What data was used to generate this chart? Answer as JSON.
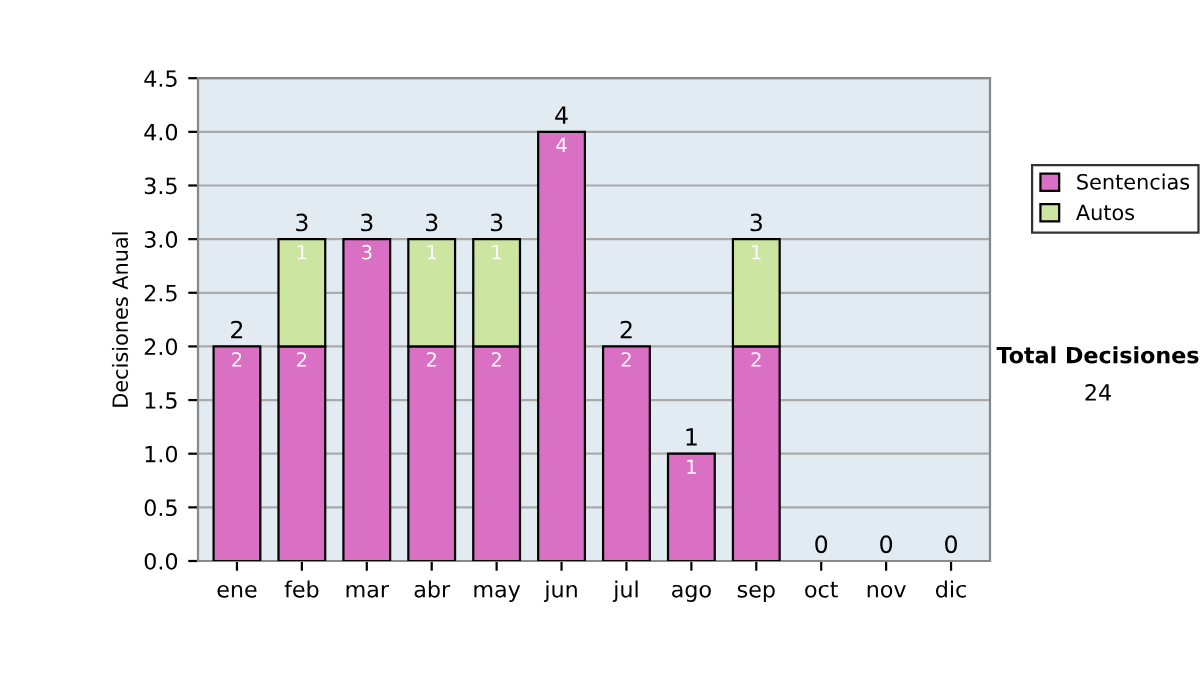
{
  "chart_data": {
    "type": "bar",
    "stacked": true,
    "ylabel": "Decisiones Anual",
    "categories": [
      "ene",
      "feb",
      "mar",
      "abr",
      "may",
      "jun",
      "jul",
      "ago",
      "sep",
      "oct",
      "nov",
      "dic"
    ],
    "series": [
      {
        "name": "Sentencias",
        "color": "#d970c4",
        "values": [
          2,
          2,
          3,
          2,
          2,
          4,
          2,
          1,
          2,
          0,
          0,
          0
        ],
        "value_labels": [
          "2",
          "2",
          "3",
          "2",
          "2",
          "4",
          "2",
          "1",
          "2",
          null,
          null,
          null
        ]
      },
      {
        "name": "Autos",
        "color": "#cce5a0",
        "values": [
          0,
          1,
          0,
          1,
          1,
          0,
          0,
          0,
          1,
          0,
          0,
          0
        ],
        "value_labels": [
          null,
          "1",
          null,
          "1",
          "1",
          null,
          null,
          null,
          "1",
          null,
          null,
          null
        ]
      }
    ],
    "totals": [
      "2",
      "3",
      "3",
      "3",
      "3",
      "4",
      "2",
      "1",
      "3",
      "0",
      "0",
      "0"
    ],
    "ylim": [
      0,
      4.5
    ],
    "yticks": [
      {
        "value": 0,
        "label": "0.0"
      },
      {
        "value": 0.5,
        "label": "0.5"
      },
      {
        "value": 1,
        "label": "1.0"
      },
      {
        "value": 1.5,
        "label": "1.5"
      },
      {
        "value": 2,
        "label": "2.0"
      },
      {
        "value": 2.5,
        "label": "2.5"
      },
      {
        "value": 3,
        "label": "3.0"
      },
      {
        "value": 3.5,
        "label": "3.5"
      },
      {
        "value": 4,
        "label": "4.0"
      },
      {
        "value": 4.5,
        "label": "4.5"
      }
    ],
    "grid": "y",
    "legend": "right",
    "annotations": [
      "Total Decisiones",
      "24"
    ]
  }
}
